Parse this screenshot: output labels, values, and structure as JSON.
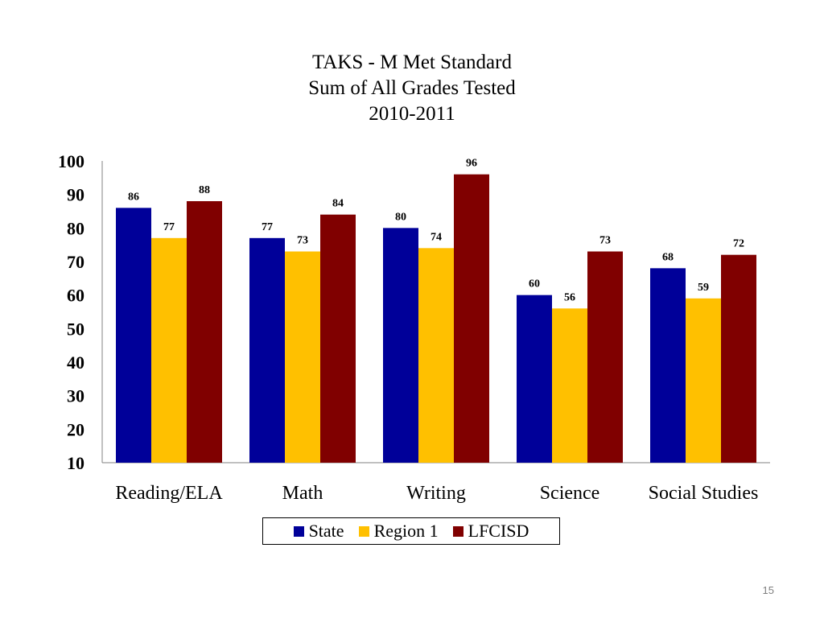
{
  "slide": {
    "page_number": "15"
  },
  "chart_data": {
    "type": "bar",
    "title_lines": [
      "TAKS - M Met Standard",
      "Sum of All Grades Tested",
      "2010-2011"
    ],
    "categories": [
      "Reading/ELA",
      "Math",
      "Writing",
      "Science",
      "Social Studies"
    ],
    "series": [
      {
        "name": "State",
        "color": "#000099",
        "values": [
          86,
          77,
          80,
          60,
          68
        ]
      },
      {
        "name": "Region 1",
        "color": "#ffc000",
        "values": [
          77,
          73,
          74,
          56,
          59
        ]
      },
      {
        "name": "LFCISD",
        "color": "#800000",
        "values": [
          88,
          84,
          96,
          73,
          72
        ]
      }
    ],
    "ylim": [
      10,
      100
    ],
    "yticks": [
      "100",
      "90",
      "80",
      "70",
      "60",
      "50",
      "40",
      "30",
      "20",
      "10"
    ],
    "grid": false,
    "legend_position": "bottom",
    "data_labels": true
  }
}
